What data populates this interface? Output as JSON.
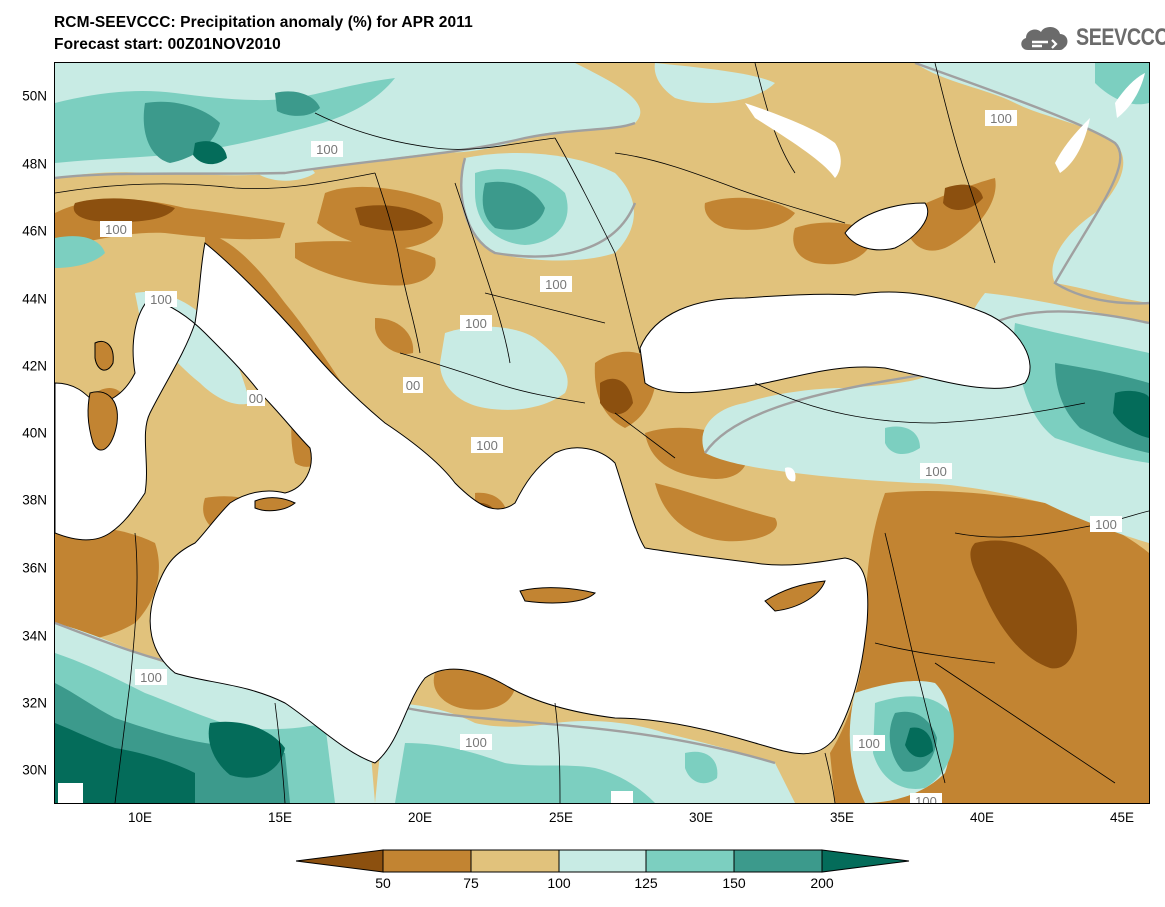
{
  "title_line1": "RCM-SEEVCCC: Precipitation anomaly (%) for APR 2011",
  "title_line2": "Forecast start: 00Z01NOV2010",
  "logo": {
    "icon": "cloud-logo-icon",
    "text": "SEEVCCC"
  },
  "lat_labels": [
    "50N",
    "48N",
    "46N",
    "44N",
    "42N",
    "40N",
    "38N",
    "36N",
    "34N",
    "32N",
    "30N"
  ],
  "lon_labels": [
    "10E",
    "15E",
    "20E",
    "25E",
    "30E",
    "35E",
    "40E",
    "45E"
  ],
  "contour_labels": [
    "100",
    "100",
    "100",
    "100",
    "100",
    "100",
    "100",
    "100",
    "100",
    "100",
    "100",
    "100",
    "100",
    "00"
  ],
  "colorbar": {
    "ticks": [
      "50",
      "75",
      "100",
      "125",
      "150",
      "200"
    ],
    "colors": [
      "#8c500f",
      "#c28432",
      "#e1c27c",
      "#c8ebe4",
      "#7ccfc0",
      "#3c9a8c",
      "#046c5a"
    ]
  },
  "palette": {
    "land_dry": "#e1c27c",
    "land_drier": "#c28432",
    "land_driest": "#8c500f",
    "wet1": "#c8ebe4",
    "wet2": "#7ccfc0",
    "wet3": "#3c9a8c",
    "wet4": "#046c5a",
    "sea": "#ffffff",
    "contour": "#a0a0a0"
  }
}
